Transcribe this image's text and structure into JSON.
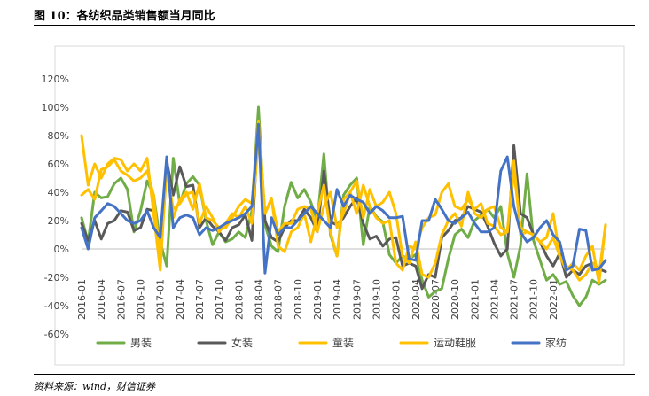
{
  "figure": {
    "title": "图 10：各纺织品类销售额当月同比",
    "source": "资料来源：wind，财信证券"
  },
  "chart_data": {
    "type": "line",
    "ylim": [
      -0.6,
      1.2
    ],
    "y_ticks": [
      -0.6,
      -0.4,
      -0.2,
      0,
      0.2,
      0.4,
      0.6,
      0.8,
      1.0,
      1.2
    ],
    "y_tick_labels": [
      "-60%",
      "-40%",
      "-20%",
      "0%",
      "20%",
      "40%",
      "60%",
      "80%",
      "100%",
      "120%"
    ],
    "x_tick_labels": [
      "2016-01",
      "2016-04",
      "2016-07",
      "2016-10",
      "2017-01",
      "2017-04",
      "2017-07",
      "2017-10",
      "2018-01",
      "2018-04",
      "2018-07",
      "2018-10",
      "2019-01",
      "2019-04",
      "2019-07",
      "2019-10",
      "2020-01",
      "2020-04",
      "2020-07",
      "2020-10",
      "2021-01",
      "2021-04",
      "2021-07",
      "2021-10",
      "2022-01"
    ],
    "legend_position": "bottom",
    "grid": false,
    "x_start": "2016-01",
    "series": [
      {
        "name": "男装",
        "color": "#70ad47",
        "values": [
          0.22,
          0.05,
          0.4,
          0.36,
          0.37,
          0.46,
          0.5,
          0.42,
          0.12,
          0.27,
          0.48,
          0.38,
          0.05,
          -0.12,
          0.64,
          0.32,
          0.46,
          0.51,
          0.45,
          0.2,
          0.03,
          0.12,
          0.05,
          0.07,
          0.12,
          0.08,
          0.27,
          1.0,
          0.17,
          0.02,
          -0.02,
          0.3,
          0.47,
          0.36,
          0.42,
          0.33,
          0.2,
          0.67,
          0.1,
          -0.05,
          0.38,
          0.45,
          0.5,
          0.03,
          0.3,
          0.23,
          0.19,
          -0.04,
          -0.1,
          -0.05,
          -0.07,
          -0.04,
          -0.22,
          -0.34,
          -0.3,
          -0.28,
          -0.07,
          0.1,
          0.14,
          0.08,
          0.2,
          0.24,
          0.28,
          0.22,
          0.3,
          -0.03,
          -0.2,
          0.02,
          0.53,
          0.06,
          -0.08,
          -0.22,
          -0.18,
          -0.25,
          -0.23,
          -0.33,
          -0.4,
          -0.34,
          -0.22,
          -0.25,
          -0.22
        ]
      },
      {
        "name": "女装",
        "color": "#595959",
        "values": [
          0.18,
          0.06,
          0.2,
          0.07,
          0.18,
          0.2,
          0.27,
          0.26,
          0.13,
          0.15,
          0.28,
          0.27,
          -0.1,
          0.62,
          0.38,
          0.58,
          0.44,
          0.45,
          0.15,
          0.22,
          0.16,
          0.12,
          0.06,
          0.15,
          0.17,
          0.24,
          0.06,
          0.9,
          0.2,
          0.08,
          0.05,
          0.15,
          0.2,
          0.2,
          0.28,
          0.22,
          0.12,
          0.55,
          0.19,
          0.17,
          0.22,
          0.3,
          0.36,
          0.18,
          0.07,
          0.09,
          0.02,
          0.07,
          0.08,
          -0.12,
          -0.1,
          -0.12,
          -0.28,
          -0.18,
          -0.2,
          0.08,
          0.13,
          0.2,
          0.22,
          0.3,
          0.28,
          0.26,
          0.16,
          0.04,
          -0.05,
          0.0,
          0.73,
          0.25,
          0.22,
          0.1,
          0.05,
          -0.05,
          -0.12,
          -0.03,
          -0.2,
          -0.15,
          -0.18,
          -0.12,
          -0.1,
          -0.14,
          -0.16
        ]
      },
      {
        "name": "童装",
        "color": "#ffc000",
        "values": [
          0.38,
          0.42,
          0.35,
          0.56,
          0.58,
          0.63,
          0.55,
          0.52,
          0.48,
          0.5,
          0.55,
          0.38,
          -0.08,
          0.55,
          0.28,
          0.32,
          0.39,
          0.4,
          0.18,
          0.3,
          0.22,
          0.12,
          0.18,
          0.25,
          0.22,
          0.3,
          0.18,
          0.8,
          0.25,
          0.36,
          0.02,
          -0.02,
          0.12,
          0.15,
          0.25,
          0.05,
          0.25,
          0.45,
          0.12,
          -0.05,
          0.35,
          0.4,
          0.48,
          0.22,
          0.42,
          0.3,
          0.33,
          0.4,
          0.25,
          -0.05,
          -0.1,
          0.05,
          -0.18,
          -0.2,
          -0.1,
          0.1,
          0.2,
          0.25,
          0.16,
          0.4,
          0.25,
          0.22,
          0.28,
          0.3,
          0.15,
          0.12,
          0.62,
          0.1,
          0.12,
          0.1,
          0.05,
          0.0,
          0.08,
          -0.05,
          -0.15,
          -0.1,
          -0.15,
          -0.05,
          0.02,
          -0.24,
          0.17
        ]
      },
      {
        "name": "运动鞋服",
        "color": "#ffc000",
        "values": [
          0.8,
          0.45,
          0.6,
          0.5,
          0.6,
          0.64,
          0.63,
          0.55,
          0.6,
          0.55,
          0.64,
          0.25,
          -0.15,
          0.6,
          0.22,
          0.35,
          0.4,
          0.28,
          0.46,
          0.22,
          0.2,
          0.15,
          0.15,
          0.22,
          0.3,
          0.35,
          0.32,
          0.9,
          0.25,
          0.35,
          0.12,
          0.18,
          0.18,
          0.28,
          0.3,
          0.28,
          0.12,
          0.3,
          0.4,
          0.15,
          0.25,
          0.4,
          0.25,
          0.45,
          0.3,
          0.22,
          0.18,
          0.2,
          -0.1,
          -0.15,
          0.02,
          0.0,
          0.15,
          0.22,
          0.24,
          0.4,
          0.46,
          0.3,
          0.28,
          0.35,
          0.28,
          0.32,
          0.18,
          0.16,
          0.1,
          0.12,
          0.55,
          0.15,
          0.12,
          0.1,
          0.05,
          0.08,
          0.25,
          -0.05,
          -0.12,
          -0.15,
          -0.22,
          -0.18,
          -0.1,
          -0.18,
          0.17
        ]
      },
      {
        "name": "家纺",
        "color": "#4472c4",
        "values": [
          0.15,
          0.0,
          0.22,
          0.27,
          0.32,
          0.3,
          0.25,
          0.2,
          0.18,
          0.2,
          0.27,
          0.15,
          0.08,
          0.65,
          0.15,
          0.22,
          0.24,
          0.22,
          0.1,
          0.15,
          0.13,
          0.15,
          0.18,
          0.2,
          0.22,
          0.25,
          0.3,
          0.88,
          -0.17,
          0.22,
          0.1,
          0.15,
          0.15,
          0.2,
          0.25,
          0.3,
          0.25,
          0.2,
          0.15,
          0.42,
          0.3,
          0.38,
          0.35,
          0.33,
          0.25,
          0.3,
          0.27,
          0.22,
          0.22,
          0.23,
          -0.07,
          -0.08,
          0.2,
          0.2,
          0.35,
          0.28,
          0.2,
          0.18,
          0.22,
          0.26,
          0.18,
          0.12,
          0.12,
          0.15,
          0.55,
          0.65,
          0.3,
          0.12,
          0.05,
          0.08,
          0.15,
          0.2,
          0.1,
          0.05,
          -0.15,
          -0.12,
          0.14,
          0.13,
          -0.15,
          -0.14,
          -0.08
        ]
      }
    ]
  }
}
